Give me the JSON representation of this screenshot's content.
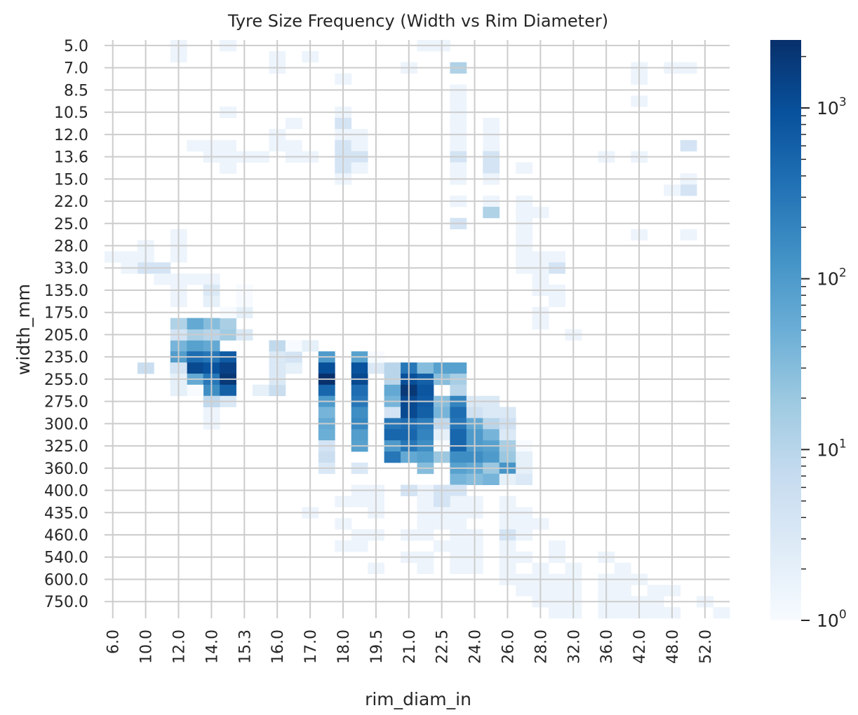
{
  "chart_data": {
    "type": "heatmap",
    "title": "Tyre Size Frequency (Width vs Rim Diameter)",
    "xlabel": "rim_diam_in",
    "ylabel": "width_mm",
    "x_tick_labels": [
      "6.0",
      "10.0",
      "12.0",
      "14.0",
      "15.3",
      "16.0",
      "17.0",
      "18.0",
      "19.5",
      "21.0",
      "22.5",
      "24.0",
      "26.0",
      "28.0",
      "32.0",
      "36.0",
      "42.0",
      "48.0",
      "52.0"
    ],
    "y_tick_labels": [
      "5.0",
      "7.0",
      "8.5",
      "10.5",
      "12.0",
      "13.6",
      "15.0",
      "22.0",
      "25.0",
      "28.0",
      "33.0",
      "135.0",
      "175.0",
      "205.0",
      "235.0",
      "255.0",
      "275.0",
      "300.0",
      "325.0",
      "360.0",
      "400.0",
      "435.0",
      "460.0",
      "540.0",
      "600.0",
      "750.0"
    ],
    "color_scale": {
      "type": "log",
      "min": 1,
      "max": 2500,
      "colormap": "Blues",
      "low_color": "#f7fbff",
      "high_color": "#08306b"
    },
    "colorbar_labels": [
      {
        "base": "10",
        "exp": "0",
        "value": 1
      },
      {
        "base": "10",
        "exp": "1",
        "value": 10
      },
      {
        "base": "10",
        "exp": "2",
        "value": 100
      },
      {
        "base": "10",
        "exp": "3",
        "value": 1000
      }
    ],
    "grid": true,
    "cells": [
      [
        2,
        0,
        1
      ],
      [
        6,
        0,
        1
      ],
      [
        2,
        1,
        1
      ],
      [
        5,
        1,
        1
      ],
      [
        3,
        1,
        1
      ],
      [
        10,
        2,
        2
      ],
      [
        6,
        4,
        2
      ],
      [
        7,
        2,
        2
      ],
      [
        8,
        2,
        1
      ],
      [
        8,
        5,
        1
      ],
      [
        6,
        5,
        1
      ],
      [
        10,
        5,
        3
      ],
      [
        14,
        5,
        1
      ],
      [
        15,
        5,
        1
      ],
      [
        9,
        6,
        1
      ],
      [
        9,
        7,
        1
      ],
      [
        9,
        8,
        2
      ],
      [
        8,
        8,
        1
      ],
      [
        6,
        8,
        1
      ],
      [
        7,
        9,
        2
      ],
      [
        6,
        9,
        2
      ],
      [
        10,
        9,
        1
      ],
      [
        3,
        9,
        1
      ],
      [
        9,
        10,
        1
      ],
      [
        8,
        10,
        1
      ],
      [
        10,
        10,
        1
      ],
      [
        12,
        10,
        1
      ],
      [
        13,
        10,
        2
      ],
      [
        14,
        10,
        2
      ],
      [
        13,
        11,
        3
      ],
      [
        15,
        11,
        2
      ],
      [
        16,
        11,
        1
      ],
      [
        12,
        11,
        1
      ],
      [
        17,
        11,
        3
      ],
      [
        18,
        11,
        1
      ],
      [
        11,
        11,
        1
      ],
      [
        10,
        11,
        1
      ],
      [
        10,
        12,
        1
      ],
      [
        11,
        12,
        1
      ],
      [
        12,
        13,
        2
      ],
      [
        13,
        12,
        1
      ],
      [
        14,
        12,
        1
      ],
      [
        13,
        13,
        1
      ],
      [
        10,
        13,
        1
      ],
      [
        14,
        14,
        1
      ],
      [
        15,
        14,
        2
      ],
      [
        16,
        14,
        2
      ],
      [
        11,
        14,
        1
      ],
      [
        12,
        14,
        1
      ],
      [
        13,
        14,
        2
      ],
      [
        16,
        15,
        1
      ],
      [
        14,
        15,
        1
      ],
      [
        15,
        15,
        2
      ],
      [
        11,
        15,
        1
      ],
      [
        17,
        15,
        1
      ],
      [
        18,
        15,
        1
      ],
      [
        10,
        15,
        1
      ],
      [
        12,
        15,
        1
      ],
      [
        12,
        16,
        1
      ],
      [
        14,
        16,
        1
      ],
      [
        15,
        16,
        1
      ],
      [
        16,
        16,
        1
      ],
      [
        17,
        16,
        1
      ],
      [
        18,
        16,
        1
      ],
      [
        19,
        16,
        1
      ],
      [
        8,
        16,
        1
      ],
      [
        14,
        17,
        1
      ],
      [
        15,
        17,
        1
      ],
      [
        16,
        17,
        1
      ],
      [
        18,
        17,
        1
      ],
      [
        19,
        17,
        1
      ],
      [
        10,
        17,
        1
      ],
      [
        20,
        17,
        1
      ],
      [
        17,
        18,
        1
      ],
      [
        18,
        18,
        2
      ],
      [
        19,
        18,
        1
      ],
      [
        11,
        18,
        1
      ],
      [
        12,
        18,
        1
      ],
      [
        13,
        18,
        1
      ],
      [
        14,
        18,
        1
      ],
      [
        16,
        18,
        1
      ],
      [
        15,
        19,
        1
      ],
      [
        16,
        19,
        1
      ],
      [
        17,
        19,
        1
      ],
      [
        18,
        19,
        1
      ],
      [
        21,
        19,
        1
      ],
      [
        10,
        19,
        1
      ],
      [
        11,
        19,
        1
      ],
      [
        13,
        20,
        1
      ],
      [
        14,
        20,
        1
      ],
      [
        16,
        20,
        1
      ],
      [
        17,
        20,
        1
      ],
      [
        18,
        20,
        1
      ],
      [
        19,
        20,
        1
      ],
      [
        21,
        20,
        1
      ],
      [
        23,
        20,
        1
      ],
      [
        12,
        21,
        1
      ],
      [
        14,
        21,
        1
      ],
      [
        16,
        21,
        1
      ],
      [
        17,
        21,
        1
      ],
      [
        18,
        21,
        1
      ],
      [
        20,
        21,
        1
      ],
      [
        22,
        21,
        1
      ],
      [
        24,
        21,
        1
      ],
      [
        18,
        22,
        1
      ],
      [
        19,
        22,
        1
      ],
      [
        20,
        22,
        1
      ],
      [
        21,
        22,
        1
      ],
      [
        22,
        22,
        1
      ],
      [
        23,
        22,
        1
      ],
      [
        24,
        22,
        1
      ],
      [
        25,
        22,
        1
      ],
      [
        19,
        23,
        1
      ],
      [
        20,
        23,
        1
      ],
      [
        21,
        23,
        1
      ],
      [
        22,
        23,
        1
      ],
      [
        23,
        23,
        1
      ],
      [
        24,
        23,
        1
      ],
      [
        26,
        23,
        1
      ],
      [
        27,
        23,
        1
      ],
      [
        20,
        24,
        1
      ],
      [
        21,
        24,
        1
      ],
      [
        22,
        24,
        1
      ],
      [
        23,
        24,
        1
      ],
      [
        24,
        24,
        1
      ],
      [
        25,
        24,
        1
      ],
      [
        26,
        24,
        1
      ],
      [
        28,
        24,
        1
      ],
      [
        21,
        25,
        1
      ],
      [
        22,
        25,
        1
      ],
      [
        23,
        25,
        1
      ],
      [
        24,
        25,
        1
      ],
      [
        25,
        25,
        1
      ],
      [
        26,
        25,
        1
      ],
      [
        27,
        25,
        1
      ],
      [
        29,
        25,
        1
      ],
      [
        0,
        0,
        1
      ]
    ]
  }
}
